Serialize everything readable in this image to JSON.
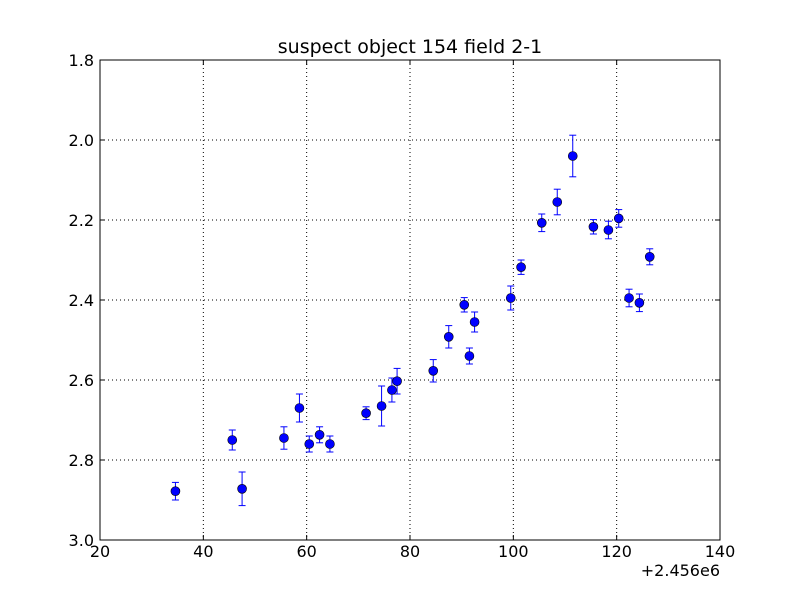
{
  "chart_data": {
    "type": "scatter",
    "title": "suspect object 154 field 2-1",
    "xlabel": "",
    "ylabel": "",
    "x_offset_label": "+2.456e6",
    "xlim": [
      20,
      140
    ],
    "ylim": [
      1.8,
      3.0
    ],
    "y_inverted": true,
    "grid": true,
    "x_ticks": [
      "20",
      "40",
      "60",
      "80",
      "100",
      "120",
      "140"
    ],
    "y_ticks": [
      "1.8",
      "2.0",
      "2.2",
      "2.4",
      "2.6",
      "2.8",
      "3.0"
    ],
    "series": [
      {
        "color": "#0000ff",
        "marker": "circle",
        "error_bars": true,
        "points": [
          {
            "x": 34.6,
            "y": 2.878,
            "err": 0.022
          },
          {
            "x": 45.6,
            "y": 2.75,
            "err": 0.025
          },
          {
            "x": 47.5,
            "y": 2.872,
            "err": 0.042
          },
          {
            "x": 55.6,
            "y": 2.745,
            "err": 0.028
          },
          {
            "x": 58.6,
            "y": 2.67,
            "err": 0.035
          },
          {
            "x": 60.5,
            "y": 2.76,
            "err": 0.02
          },
          {
            "x": 62.5,
            "y": 2.737,
            "err": 0.02
          },
          {
            "x": 64.5,
            "y": 2.76,
            "err": 0.02
          },
          {
            "x": 71.5,
            "y": 2.683,
            "err": 0.016
          },
          {
            "x": 74.5,
            "y": 2.665,
            "err": 0.05
          },
          {
            "x": 76.5,
            "y": 2.625,
            "err": 0.03
          },
          {
            "x": 77.5,
            "y": 2.603,
            "err": 0.032
          },
          {
            "x": 84.5,
            "y": 2.577,
            "err": 0.028
          },
          {
            "x": 87.5,
            "y": 2.492,
            "err": 0.028
          },
          {
            "x": 90.5,
            "y": 2.412,
            "err": 0.018
          },
          {
            "x": 91.5,
            "y": 2.54,
            "err": 0.02
          },
          {
            "x": 92.5,
            "y": 2.455,
            "err": 0.025
          },
          {
            "x": 99.5,
            "y": 2.395,
            "err": 0.03
          },
          {
            "x": 101.5,
            "y": 2.318,
            "err": 0.018
          },
          {
            "x": 105.5,
            "y": 2.207,
            "err": 0.022
          },
          {
            "x": 108.5,
            "y": 2.155,
            "err": 0.032
          },
          {
            "x": 111.5,
            "y": 2.04,
            "err": 0.052
          },
          {
            "x": 115.5,
            "y": 2.217,
            "err": 0.018
          },
          {
            "x": 118.4,
            "y": 2.225,
            "err": 0.022
          },
          {
            "x": 120.4,
            "y": 2.196,
            "err": 0.022
          },
          {
            "x": 122.4,
            "y": 2.395,
            "err": 0.022
          },
          {
            "x": 124.4,
            "y": 2.407,
            "err": 0.022
          },
          {
            "x": 126.4,
            "y": 2.292,
            "err": 0.02
          }
        ]
      }
    ]
  }
}
